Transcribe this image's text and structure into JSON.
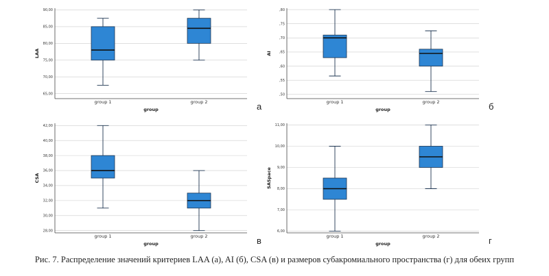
{
  "caption": "Рис. 7. Распределение значений критериев LAA (а), AI (б), CSA (в) и размеров субакромиального пространства (г) для обеих групп",
  "chart_data": [
    {
      "type": "box",
      "panel_label": "а",
      "xlabel": "group",
      "ylabel": "LAA",
      "ylim": [
        63.5,
        90.5
      ],
      "yticks": [
        65,
        70,
        75,
        80,
        85,
        90
      ],
      "ytick_labels": [
        "65,00",
        "70,00",
        "75,00",
        "80,00",
        "85,00",
        "90,00"
      ],
      "categories": [
        "group 1",
        "group 2"
      ],
      "boxes": [
        {
          "min": 67.5,
          "q1": 75,
          "median": 78,
          "q3": 85,
          "max": 87.5
        },
        {
          "min": 75,
          "q1": 80,
          "median": 84.5,
          "q3": 87.5,
          "max": 90
        }
      ]
    },
    {
      "type": "box",
      "panel_label": "б",
      "xlabel": "group",
      "ylabel": "AI",
      "ylim": [
        0.485,
        0.805
      ],
      "yticks": [
        0.5,
        0.55,
        0.6,
        0.65,
        0.7,
        0.75,
        0.8
      ],
      "ytick_labels": [
        ",50",
        ",55",
        ",60",
        ",65",
        ",70",
        ",75",
        ",80"
      ],
      "categories": [
        "group 1",
        "group 2"
      ],
      "boxes": [
        {
          "min": 0.565,
          "q1": 0.63,
          "median": 0.7,
          "q3": 0.71,
          "max": 0.8
        },
        {
          "min": 0.51,
          "q1": 0.6,
          "median": 0.645,
          "q3": 0.66,
          "max": 0.725
        }
      ]
    },
    {
      "type": "box",
      "panel_label": "в",
      "xlabel": "group",
      "ylabel": "CSA",
      "ylim": [
        27.7,
        42.3
      ],
      "yticks": [
        28,
        30,
        32,
        34,
        36,
        38,
        40,
        42
      ],
      "ytick_labels": [
        "28,00",
        "30,00",
        "32,00",
        "34,00",
        "36,00",
        "38,00",
        "40,00",
        "42,00"
      ],
      "categories": [
        "group 1",
        "group 2"
      ],
      "boxes": [
        {
          "min": 31,
          "q1": 35,
          "median": 36,
          "q3": 38,
          "max": 42
        },
        {
          "min": 28,
          "q1": 31,
          "median": 32,
          "q3": 33,
          "max": 36
        }
      ]
    },
    {
      "type": "box",
      "panel_label": "г",
      "xlabel": "group",
      "ylabel": "SASpace",
      "ylim": [
        5.92,
        11.08
      ],
      "yticks": [
        6,
        7,
        8,
        9,
        10,
        11
      ],
      "ytick_labels": [
        "6,00",
        "7,00",
        "8,00",
        "9,00",
        "10,00",
        "11,00"
      ],
      "categories": [
        "group 1",
        "group 2"
      ],
      "boxes": [
        {
          "min": 6,
          "q1": 7.5,
          "median": 8,
          "q3": 8.5,
          "max": 10
        },
        {
          "min": 8,
          "q1": 9,
          "median": 9.5,
          "q3": 10,
          "max": 11
        }
      ]
    }
  ],
  "colors": {
    "box_fill": "#2e86d4",
    "box_stroke": "#1d3450",
    "gridline": "#cccccc",
    "axis": "#444444"
  }
}
